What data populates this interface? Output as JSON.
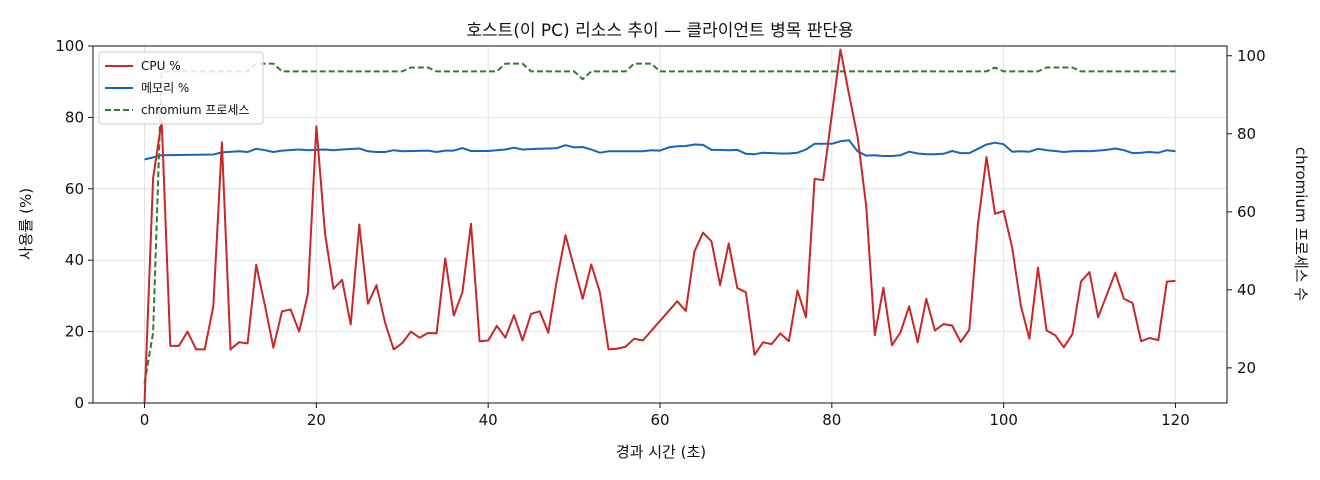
{
  "chart_data": {
    "type": "line",
    "title": "호스트(이 PC) 리소스 추이 — 클라이언트 병목 판단용",
    "xlabel": "경과 시간 (초)",
    "ylabel": "사용률 (%)",
    "ylabel_right": "chromium 프로세스 수",
    "xlim": [
      -6,
      126
    ],
    "ylim": [
      0,
      100
    ],
    "ylim_right": [
      11,
      102.5
    ],
    "x_ticks": [
      0,
      20,
      40,
      60,
      80,
      100,
      120
    ],
    "y_ticks": [
      0,
      20,
      40,
      60,
      80,
      100
    ],
    "y_ticks_right": [
      20,
      40,
      60,
      80,
      100
    ],
    "grid": true,
    "legend_position": "top-left",
    "series": [
      {
        "name": "CPU %",
        "axis": "left",
        "color": "#c62828",
        "style": "solid",
        "points": [
          [
            0,
            0
          ],
          [
            1,
            63
          ],
          [
            2,
            79
          ],
          [
            3,
            16
          ],
          [
            4,
            16
          ],
          [
            5,
            20
          ],
          [
            6,
            15
          ],
          [
            7,
            15
          ],
          [
            8,
            27
          ],
          [
            9,
            73
          ],
          [
            10,
            15
          ],
          [
            11,
            17
          ],
          [
            12,
            16.7
          ],
          [
            13,
            38.7
          ],
          [
            14,
            27.5
          ],
          [
            15,
            15.5
          ],
          [
            16,
            25.7
          ],
          [
            17,
            26.2
          ],
          [
            18,
            20
          ],
          [
            19,
            30.5
          ],
          [
            20,
            77.5
          ],
          [
            21,
            47.5
          ],
          [
            22,
            32
          ],
          [
            23,
            34.5
          ],
          [
            24,
            22
          ],
          [
            25,
            50
          ],
          [
            26,
            27.8
          ],
          [
            27,
            33
          ],
          [
            28,
            22.5
          ],
          [
            29,
            15
          ],
          [
            30,
            16.8
          ],
          [
            31,
            20
          ],
          [
            32,
            18.3
          ],
          [
            33,
            19.6
          ],
          [
            34,
            19.5
          ],
          [
            35,
            40.5
          ],
          [
            36,
            24.5
          ],
          [
            37,
            31
          ],
          [
            38,
            50.2
          ],
          [
            39,
            17.3
          ],
          [
            40,
            17.5
          ],
          [
            41,
            21.6
          ],
          [
            42,
            18.3
          ],
          [
            43,
            24.6
          ],
          [
            44,
            17.5
          ],
          [
            45,
            25
          ],
          [
            46,
            25.7
          ],
          [
            47,
            19.7
          ],
          [
            48,
            34.5
          ],
          [
            49,
            47
          ],
          [
            50,
            38
          ],
          [
            51,
            29.2
          ],
          [
            52,
            38.8
          ],
          [
            53,
            31
          ],
          [
            54,
            15
          ],
          [
            55,
            15.2
          ],
          [
            56,
            15.8
          ],
          [
            57,
            18
          ],
          [
            58,
            17.5
          ],
          [
            62,
            28.5
          ],
          [
            63,
            25.8
          ],
          [
            64,
            42.4
          ],
          [
            65,
            47.7
          ],
          [
            66,
            45.3
          ],
          [
            67,
            33
          ],
          [
            68,
            44.7
          ],
          [
            69,
            32.2
          ],
          [
            70,
            31
          ],
          [
            71,
            13.5
          ],
          [
            72,
            17
          ],
          [
            73,
            16.5
          ],
          [
            74,
            19.5
          ],
          [
            75,
            17.3
          ],
          [
            76,
            31.5
          ],
          [
            77,
            24
          ],
          [
            78,
            62.8
          ],
          [
            79,
            62.4
          ],
          [
            81,
            99
          ],
          [
            82,
            86.5
          ],
          [
            83,
            74.5
          ],
          [
            84,
            55.2
          ],
          [
            85,
            19
          ],
          [
            86,
            32.3
          ],
          [
            87,
            16.2
          ],
          [
            88,
            19.8
          ],
          [
            89,
            27.1
          ],
          [
            90,
            17
          ],
          [
            91,
            29.2
          ],
          [
            92,
            20.3
          ],
          [
            93,
            22.1
          ],
          [
            94,
            21.7
          ],
          [
            95,
            17.1
          ],
          [
            96,
            20.5
          ],
          [
            97,
            50
          ],
          [
            98,
            68.9
          ],
          [
            99,
            53
          ],
          [
            100,
            53.8
          ],
          [
            101,
            43.5
          ],
          [
            102,
            27.3
          ],
          [
            103,
            18
          ],
          [
            104,
            37.9
          ],
          [
            105,
            20.3
          ],
          [
            106,
            19
          ],
          [
            107,
            15.6
          ],
          [
            108,
            19.3
          ],
          [
            109,
            34
          ],
          [
            110,
            36.7
          ],
          [
            111,
            24
          ],
          [
            113,
            36.5
          ],
          [
            114,
            29.2
          ],
          [
            115,
            28
          ],
          [
            116,
            17.3
          ],
          [
            117,
            18.2
          ],
          [
            118,
            17.6
          ],
          [
            119,
            34
          ],
          [
            120,
            34.2
          ]
        ]
      },
      {
        "name": "메모리 %",
        "axis": "left",
        "color": "#1565c0",
        "style": "solid",
        "points": [
          [
            0,
            68.2
          ],
          [
            1,
            68.8
          ],
          [
            2,
            69.4
          ],
          [
            5,
            69.5
          ],
          [
            8,
            69.6
          ],
          [
            9,
            70.2
          ],
          [
            11,
            70.5
          ],
          [
            12,
            70.3
          ],
          [
            13,
            71.2
          ],
          [
            14,
            70.8
          ],
          [
            15,
            70.3
          ],
          [
            16,
            70.7
          ],
          [
            18,
            71.0
          ],
          [
            19,
            70.8
          ],
          [
            21,
            71.0
          ],
          [
            22,
            70.8
          ],
          [
            23,
            71.0
          ],
          [
            25,
            71.3
          ],
          [
            26,
            70.5
          ],
          [
            27,
            70.3
          ],
          [
            28,
            70.3
          ],
          [
            29,
            70.8
          ],
          [
            30,
            70.5
          ],
          [
            33,
            70.7
          ],
          [
            34,
            70.3
          ],
          [
            35,
            70.7
          ],
          [
            36,
            70.7
          ],
          [
            37,
            71.4
          ],
          [
            38,
            70.6
          ],
          [
            40,
            70.6
          ],
          [
            42,
            71.0
          ],
          [
            43,
            71.5
          ],
          [
            44,
            71.0
          ],
          [
            46,
            71.2
          ],
          [
            47,
            71.3
          ],
          [
            48,
            71.4
          ],
          [
            49,
            72.2
          ],
          [
            50,
            71.6
          ],
          [
            51,
            71.7
          ],
          [
            52,
            71.0
          ],
          [
            53,
            70.1
          ],
          [
            54,
            70.5
          ],
          [
            58,
            70.5
          ],
          [
            59,
            70.8
          ],
          [
            60,
            70.7
          ],
          [
            61,
            71.6
          ],
          [
            62,
            71.9
          ],
          [
            63,
            72.0
          ],
          [
            64,
            72.4
          ],
          [
            65,
            72.3
          ],
          [
            66,
            70.9
          ],
          [
            67,
            70.9
          ],
          [
            68,
            70.8
          ],
          [
            69,
            70.9
          ],
          [
            70,
            69.8
          ],
          [
            71,
            69.7
          ],
          [
            72,
            70.1
          ],
          [
            73,
            70.0
          ],
          [
            74,
            69.9
          ],
          [
            75,
            69.9
          ],
          [
            76,
            70.1
          ],
          [
            77,
            71.0
          ],
          [
            78,
            72.6
          ],
          [
            79,
            72.6
          ],
          [
            80,
            72.6
          ],
          [
            81,
            73.3
          ],
          [
            82,
            73.6
          ],
          [
            83,
            70.5
          ],
          [
            84,
            69.3
          ],
          [
            85,
            69.4
          ],
          [
            86,
            69.2
          ],
          [
            87,
            69.2
          ],
          [
            88,
            69.4
          ],
          [
            89,
            70.4
          ],
          [
            90,
            69.9
          ],
          [
            91,
            69.7
          ],
          [
            92,
            69.7
          ],
          [
            93,
            69.8
          ],
          [
            94,
            70.6
          ],
          [
            95,
            70.0
          ],
          [
            96,
            70.0
          ],
          [
            97,
            71.2
          ],
          [
            98,
            72.4
          ],
          [
            99,
            72.9
          ],
          [
            100,
            72.5
          ],
          [
            101,
            70.4
          ],
          [
            102,
            70.5
          ],
          [
            103,
            70.4
          ],
          [
            104,
            71.2
          ],
          [
            105,
            70.8
          ],
          [
            106,
            70.6
          ],
          [
            107,
            70.3
          ],
          [
            108,
            70.5
          ],
          [
            109,
            70.6
          ],
          [
            110,
            70.5
          ],
          [
            111,
            70.7
          ],
          [
            112,
            70.9
          ],
          [
            113,
            71.3
          ],
          [
            114,
            70.8
          ],
          [
            115,
            70.0
          ],
          [
            116,
            70.1
          ],
          [
            117,
            70.3
          ],
          [
            118,
            70.1
          ],
          [
            119,
            70.8
          ],
          [
            120,
            70.5
          ]
        ]
      },
      {
        "name": "chromium 프로세스",
        "axis": "right",
        "color": "#2e7d32",
        "style": "dashed",
        "points": [
          [
            0,
            16
          ],
          [
            1,
            29
          ],
          [
            2,
            96
          ],
          [
            12,
            96
          ],
          [
            13,
            98
          ],
          [
            15,
            98
          ],
          [
            16,
            96
          ],
          [
            30,
            96
          ],
          [
            31,
            97
          ],
          [
            33,
            97
          ],
          [
            34,
            96
          ],
          [
            41,
            96
          ],
          [
            42,
            98
          ],
          [
            44,
            98
          ],
          [
            45,
            96
          ],
          [
            50,
            96
          ],
          [
            51,
            94
          ],
          [
            52,
            96
          ],
          [
            56,
            96
          ],
          [
            57,
            98
          ],
          [
            59,
            98
          ],
          [
            60,
            96
          ],
          [
            98,
            96
          ],
          [
            99,
            97
          ],
          [
            100,
            96
          ],
          [
            104,
            96
          ],
          [
            105,
            97
          ],
          [
            108,
            97
          ],
          [
            109,
            96
          ],
          [
            120,
            96
          ]
        ]
      }
    ]
  }
}
